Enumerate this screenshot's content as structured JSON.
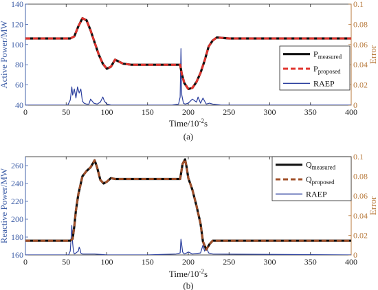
{
  "chart_data": [
    {
      "type": "line",
      "panel_caption": "(a)",
      "xlabel_base": "Time/10",
      "xlabel_exp": "-2",
      "xlabel_unit": "s",
      "ylabel": "Active Power/MW",
      "y2label": "Error",
      "xlim": [
        0,
        400
      ],
      "ylim": [
        40,
        140
      ],
      "y2lim": [
        0,
        0.1
      ],
      "x_ticks": [
        "0",
        "50",
        "100",
        "150",
        "200",
        "250",
        "300",
        "350",
        "400"
      ],
      "y_ticks": [
        "40",
        "60",
        "80",
        "100",
        "120",
        "140"
      ],
      "y2_ticks": [
        "0",
        "0.02",
        "0.04",
        "0.06",
        "0.08",
        "0.1"
      ],
      "legend_position": "center-right",
      "legend": [
        {
          "base": "P",
          "sub": "measured"
        },
        {
          "base": "P",
          "sub": "proposed"
        },
        {
          "base": "RAEP",
          "sub": ""
        }
      ],
      "series": [
        {
          "name": "P_measured",
          "color": "#111111",
          "style": "solid",
          "axis": "left",
          "x": [
            0,
            55,
            60,
            65,
            70,
            75,
            80,
            85,
            90,
            95,
            100,
            105,
            110,
            115,
            120,
            130,
            150,
            170,
            190,
            192,
            195,
            200,
            205,
            210,
            215,
            220,
            225,
            230,
            235,
            250,
            300,
            350,
            400
          ],
          "y": [
            106,
            106,
            108,
            118,
            126,
            124,
            114,
            102,
            90,
            81,
            76,
            78,
            85,
            83,
            81,
            80,
            80,
            80,
            80,
            71,
            62,
            56,
            57,
            63,
            72,
            84,
            98,
            104,
            107,
            106,
            106,
            106,
            106
          ]
        },
        {
          "name": "P_proposed",
          "color": "#e0342e",
          "style": "dashed",
          "axis": "left",
          "x": [
            0,
            55,
            60,
            65,
            70,
            75,
            80,
            85,
            90,
            95,
            100,
            105,
            110,
            115,
            120,
            130,
            150,
            170,
            190,
            192,
            195,
            200,
            205,
            210,
            215,
            220,
            225,
            230,
            235,
            250,
            300,
            350,
            400
          ],
          "y": [
            106,
            106,
            108,
            118,
            126,
            124,
            114,
            102,
            90,
            81,
            76,
            78,
            85,
            83,
            81,
            80,
            80,
            80,
            80,
            71,
            62,
            56,
            57,
            63,
            72,
            84,
            98,
            104,
            107,
            106,
            106,
            106,
            106
          ]
        },
        {
          "name": "RAEP",
          "color": "#2b3f9e",
          "style": "solid",
          "axis": "right",
          "x": [
            0,
            52,
            55,
            57,
            58,
            60,
            62,
            64,
            66,
            68,
            70,
            72,
            75,
            78,
            80,
            84,
            88,
            92,
            95,
            97,
            100,
            105,
            110,
            120,
            140,
            160,
            180,
            188,
            190,
            191,
            192,
            193,
            194,
            196,
            200,
            205,
            210,
            212,
            215,
            218,
            220,
            222,
            226,
            230,
            240,
            300,
            400
          ],
          "y": [
            0,
            0,
            0.005,
            0.018,
            0.01,
            0.016,
            0.007,
            0.018,
            0.012,
            0.016,
            0.004,
            0.002,
            0.001,
            0.001,
            0.006,
            0.002,
            0.001,
            0.003,
            0.008,
            0.004,
            0.001,
            0,
            0,
            0,
            0,
            0,
            0,
            0.001,
            0.008,
            0.056,
            0.01,
            0.006,
            0.002,
            0.001,
            0.002,
            0.006,
            0.003,
            0.008,
            0.002,
            0.007,
            0.004,
            0.001,
            0.002,
            0.001,
            0,
            0,
            0
          ]
        }
      ]
    },
    {
      "type": "line",
      "panel_caption": "(b)",
      "xlabel_base": "Time/10",
      "xlabel_exp": "-2",
      "xlabel_unit": "s",
      "ylabel": "Reactive Power/MW",
      "y2label": "Error",
      "xlim": [
        0,
        400
      ],
      "ylim": [
        160,
        270
      ],
      "y2lim": [
        0,
        0.1
      ],
      "x_ticks": [
        "0",
        "50",
        "100",
        "150",
        "200",
        "250",
        "300",
        "350",
        "400"
      ],
      "y_ticks": [
        "160",
        "180",
        "200",
        "220",
        "240",
        "260"
      ],
      "y2_ticks": [
        "0",
        "0.02",
        "0.04",
        "0.06",
        "0.08",
        "0.1"
      ],
      "legend_position": "top-right",
      "legend": [
        {
          "base": "Q",
          "sub": "measured"
        },
        {
          "base": "Q",
          "sub": "proposed"
        },
        {
          "base": "RAEP",
          "sub": ""
        }
      ],
      "series": [
        {
          "name": "Q_measured",
          "color": "#111111",
          "style": "solid",
          "axis": "left",
          "x": [
            0,
            55,
            58,
            60,
            62,
            65,
            70,
            75,
            80,
            85,
            88,
            92,
            96,
            100,
            105,
            110,
            120,
            150,
            180,
            190,
            193,
            196,
            198,
            200,
            205,
            210,
            215,
            218,
            222,
            226,
            230,
            250,
            300,
            350,
            400
          ],
          "y": [
            176,
            176,
            178,
            192,
            210,
            228,
            248,
            254,
            258,
            266,
            258,
            244,
            240,
            242,
            246,
            245,
            245,
            245,
            245,
            245,
            262,
            267,
            258,
            246,
            233,
            215,
            195,
            175,
            166,
            172,
            176,
            176,
            176,
            176,
            176
          ]
        },
        {
          "name": "Q_proposed",
          "color": "#a0502a",
          "style": "dashed",
          "axis": "left",
          "x": [
            0,
            55,
            58,
            60,
            62,
            65,
            70,
            75,
            80,
            85,
            88,
            92,
            96,
            100,
            105,
            110,
            120,
            150,
            180,
            190,
            193,
            196,
            198,
            200,
            205,
            210,
            215,
            218,
            222,
            226,
            230,
            250,
            300,
            350,
            400
          ],
          "y": [
            176,
            176,
            178,
            192,
            210,
            228,
            248,
            254,
            258,
            266,
            258,
            244,
            240,
            242,
            246,
            245,
            245,
            245,
            245,
            245,
            262,
            267,
            258,
            246,
            233,
            215,
            195,
            175,
            166,
            172,
            176,
            176,
            176,
            176,
            176
          ]
        },
        {
          "name": "RAEP",
          "color": "#2b3f9e",
          "style": "solid",
          "axis": "right",
          "x": [
            0,
            53,
            55,
            56,
            57,
            58,
            59,
            60,
            62,
            65,
            66,
            67,
            68,
            70,
            75,
            85,
            100,
            150,
            185,
            190,
            191,
            192,
            193,
            195,
            198,
            200,
            205,
            215,
            218,
            220,
            222,
            225,
            230,
            400
          ],
          "y": [
            0,
            0,
            0.004,
            0.016,
            0.03,
            0.012,
            0.004,
            0.001,
            0.002,
            0.004,
            0.008,
            0.006,
            0.002,
            0.001,
            0.001,
            0.001,
            0,
            0,
            0.001,
            0.002,
            0.016,
            0.01,
            0.003,
            0.001,
            0.002,
            0.003,
            0.001,
            0.002,
            0.01,
            0.004,
            0.008,
            0.002,
            0.001,
            0
          ]
        }
      ]
    }
  ]
}
